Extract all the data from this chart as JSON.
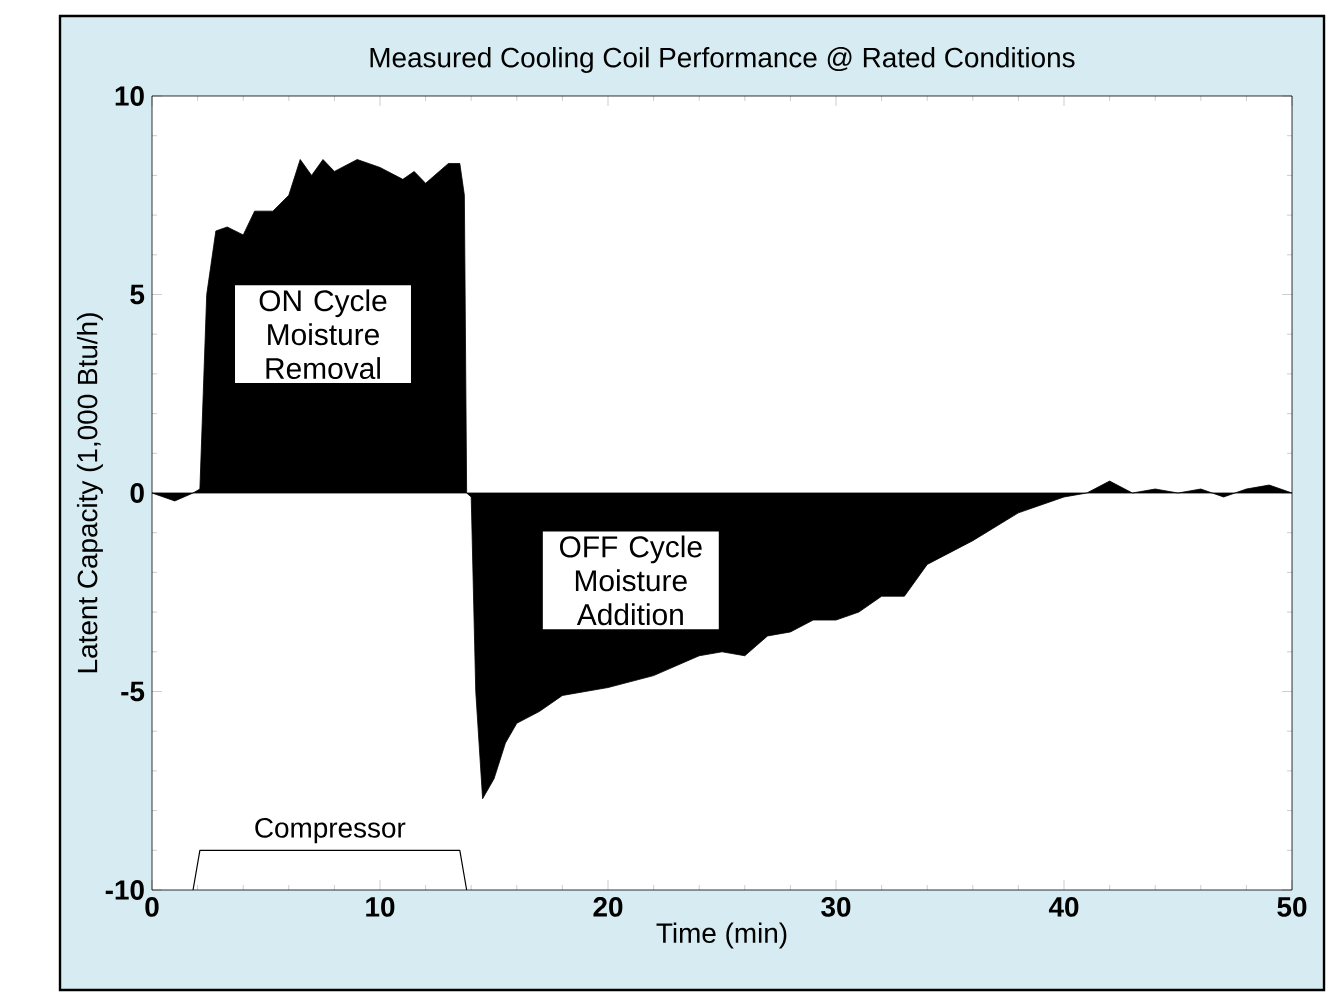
{
  "chart_data": {
    "type": "area",
    "title": "Measured Cooling Coil Performance @ Rated Conditions",
    "xlabel": "Time (min)",
    "ylabel": "Latent Capacity (1,000 Btu/h)",
    "xlim": [
      0,
      50
    ],
    "ylim": [
      -10,
      10
    ],
    "xticks": [
      0,
      10,
      20,
      30,
      40,
      50
    ],
    "yticks": [
      -10,
      -5,
      0,
      5,
      10
    ],
    "grid": false,
    "legend": false,
    "series": [
      {
        "color": "#000000",
        "x": [
          0,
          1,
          1.8,
          2.1,
          2.4,
          2.8,
          3.3,
          4,
          4.5,
          5.3,
          6,
          6.5,
          7,
          7.5,
          8,
          9,
          10,
          11,
          11.5,
          12,
          13,
          13.5,
          13.7,
          13.8,
          14,
          14.2,
          14.5,
          15,
          15.5,
          16,
          17,
          18,
          20,
          22,
          24,
          25,
          26,
          27,
          28,
          29,
          30,
          31,
          32,
          33,
          34,
          36,
          38,
          40,
          41,
          42,
          43,
          44,
          45,
          46,
          47,
          48,
          49,
          50
        ],
        "values": [
          0,
          -0.2,
          0,
          0.1,
          5,
          6.6,
          6.7,
          6.5,
          7.1,
          7.1,
          7.5,
          8.4,
          8.0,
          8.4,
          8.1,
          8.4,
          8.2,
          7.9,
          8.1,
          7.8,
          8.3,
          8.3,
          7.5,
          0,
          -0.1,
          -5,
          -7.7,
          -7.2,
          -6.3,
          -5.8,
          -5.5,
          -5.1,
          -4.9,
          -4.6,
          -4.1,
          -4.0,
          -4.1,
          -3.6,
          -3.5,
          -3.2,
          -3.2,
          -3.0,
          -2.6,
          -2.6,
          -1.8,
          -1.2,
          -0.5,
          -0.1,
          0,
          0.3,
          0,
          0.1,
          0,
          0.1,
          -0.1,
          0.1,
          0.2,
          0
        ]
      },
      {
        "type": "line",
        "name": "Compressor",
        "color": "#000000",
        "x": [
          1.8,
          2.1,
          13.5,
          13.8
        ],
        "values": [
          -10,
          -9,
          -9,
          -10
        ]
      }
    ],
    "annotations": [
      "ON Cycle Moisture Removal",
      "OFF Cycle Moisture Addition"
    ]
  }
}
